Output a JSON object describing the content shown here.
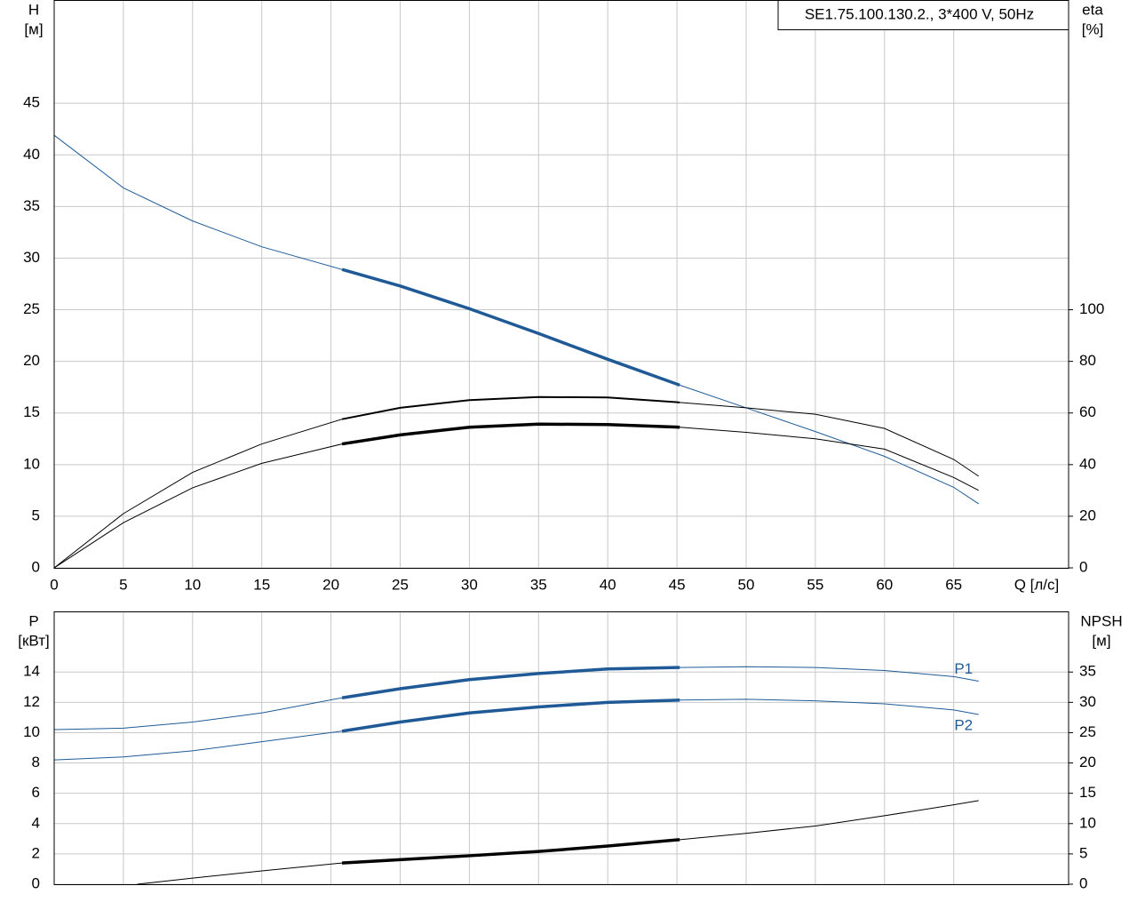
{
  "chart_data": [
    {
      "type": "line",
      "title": "SE1.75.100.130.2., 3*400 V, 50Hz",
      "x_label": "Q [л/с]",
      "y_label": "H",
      "y_unit": "[м]",
      "y2_label": "eta",
      "y2_unit": "[%]",
      "xlim": [
        0,
        73.3
      ],
      "xticks": [
        0,
        5,
        10,
        15,
        20,
        25,
        30,
        35,
        40,
        45,
        50,
        55,
        60,
        65
      ],
      "ylim": [
        0,
        55
      ],
      "yticks": [
        0,
        5,
        10,
        15,
        20,
        25,
        30,
        35,
        40,
        45
      ],
      "y2lim": [
        0,
        220
      ],
      "y2ticks": [
        0,
        20,
        40,
        60,
        80,
        100
      ],
      "grid": true,
      "highlight_x": [
        20.8,
        45.2
      ],
      "x": [
        0,
        5,
        10,
        15,
        20.8,
        25,
        30,
        35,
        40,
        45.2,
        50,
        55,
        60,
        65,
        66.8
      ],
      "series": [
        {
          "color": "#1f5a96",
          "values": [
            41.9,
            36.8,
            33.6,
            31.1,
            28.9,
            27.3,
            25.1,
            22.7,
            20.2,
            17.7,
            15.5,
            13.2,
            10.8,
            7.8,
            6.2
          ]
        },
        {
          "color": "#000000",
          "axis": "y2",
          "values": [
            0,
            21,
            37,
            48,
            57.6,
            62,
            65,
            66.2,
            66,
            64.1,
            62,
            59.5,
            54,
            42,
            35.5
          ]
        },
        {
          "color": "#000000",
          "axis": "y2",
          "values": [
            0,
            17.5,
            31,
            40.5,
            48,
            51.5,
            54.5,
            55.7,
            55.5,
            54.5,
            52.5,
            50,
            46,
            35,
            30
          ]
        }
      ]
    },
    {
      "type": "line",
      "y_label": "P",
      "y_unit": "[кВт]",
      "y2_label": "NPSH",
      "y2_unit": "[м]",
      "xlim": [
        0,
        73.3
      ],
      "ylim": [
        0,
        18
      ],
      "yticks": [
        0,
        2,
        4,
        6,
        8,
        10,
        12,
        14
      ],
      "y2lim": [
        0,
        45
      ],
      "y2ticks": [
        0,
        5,
        10,
        15,
        20,
        25,
        30,
        35
      ],
      "grid": true,
      "highlight_x": [
        20.8,
        45.2
      ],
      "x": [
        0,
        5,
        10,
        15,
        20.8,
        25,
        30,
        35,
        40,
        45.2,
        50,
        55,
        60,
        65,
        66.8
      ],
      "series": [
        {
          "name": "P1",
          "color": "#1f5a96",
          "values": [
            10.2,
            10.3,
            10.7,
            11.3,
            12.3,
            12.9,
            13.5,
            13.9,
            14.2,
            14.3,
            14.35,
            14.3,
            14.1,
            13.7,
            13.4
          ]
        },
        {
          "name": "P2",
          "color": "#1f5a96",
          "values": [
            8.2,
            8.4,
            8.8,
            9.4,
            10.1,
            10.7,
            11.3,
            11.7,
            12.0,
            12.15,
            12.2,
            12.1,
            11.9,
            11.5,
            11.2
          ]
        },
        {
          "color": "#000000",
          "axis": "y2",
          "x": [
            6,
            10,
            15,
            20.8,
            30,
            35,
            40,
            45.2,
            50,
            55,
            60,
            65,
            66.8
          ],
          "values": [
            0,
            1.0,
            2.2,
            3.5,
            4.7,
            5.4,
            6.3,
            7.35,
            8.4,
            9.6,
            11.3,
            13.1,
            13.8
          ]
        }
      ]
    }
  ]
}
